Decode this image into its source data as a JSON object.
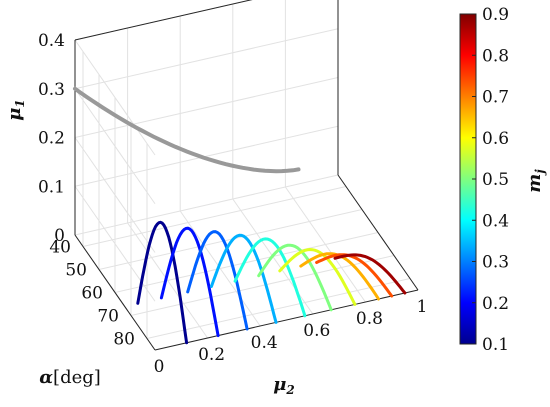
{
  "chart_data": {
    "type": "line",
    "projection": "3d",
    "axes": {
      "x": {
        "label_main": "μ",
        "label_sub": "2",
        "ticks": [
          "0",
          "0.2",
          "0.4",
          "0.6",
          "0.8",
          "1"
        ],
        "range": [
          0,
          1
        ]
      },
      "y": {
        "label_main": "α",
        "label_unit": "[deg]",
        "ticks": [
          "40",
          "50",
          "60",
          "70",
          "80"
        ],
        "range": [
          35,
          85
        ]
      },
      "z": {
        "label_main": "μ",
        "label_sub": "1",
        "ticks": [
          "0",
          "0.1",
          "0.2",
          "0.3",
          "0.4"
        ],
        "range": [
          0,
          0.4
        ]
      }
    },
    "grid": true,
    "colorbar": {
      "label_main": "m",
      "label_sub": "j",
      "ticks": [
        "0.1",
        "0.2",
        "0.3",
        "0.4",
        "0.5",
        "0.6",
        "0.7",
        "0.8",
        "0.9"
      ],
      "range": [
        0.1,
        0.9
      ],
      "colormap": "jet"
    },
    "envelope": {
      "color": "#999999",
      "x": [
        0.0,
        0.85
      ],
      "z": [
        0.3,
        0.03
      ]
    },
    "series": [
      {
        "m": 0.1,
        "x_start": 0.05,
        "x_end": 0.12,
        "z_peak": 0.205,
        "color": "#00008f"
      },
      {
        "m": 0.2,
        "x_start": 0.14,
        "x_end": 0.24,
        "z_peak": 0.18,
        "color": "#0010ff"
      },
      {
        "m": 0.3,
        "x_start": 0.24,
        "x_end": 0.35,
        "z_peak": 0.16,
        "color": "#0060ff"
      },
      {
        "m": 0.4,
        "x_start": 0.33,
        "x_end": 0.46,
        "z_peak": 0.14,
        "color": "#00b0ff"
      },
      {
        "m": 0.5,
        "x_start": 0.42,
        "x_end": 0.57,
        "z_peak": 0.12,
        "color": "#20ffdf"
      },
      {
        "m": 0.6,
        "x_start": 0.51,
        "x_end": 0.67,
        "z_peak": 0.095,
        "color": "#80ff80"
      },
      {
        "m": 0.7,
        "x_start": 0.59,
        "x_end": 0.76,
        "z_peak": 0.075,
        "color": "#dfff20"
      },
      {
        "m": 0.8,
        "x_start": 0.67,
        "x_end": 0.85,
        "z_peak": 0.055,
        "color": "#ffb000"
      },
      {
        "m": 0.85,
        "x_start": 0.73,
        "x_end": 0.9,
        "z_peak": 0.045,
        "color": "#ff5000"
      },
      {
        "m": 0.9,
        "x_start": 0.8,
        "x_end": 0.95,
        "z_peak": 0.035,
        "color": "#9f0000"
      }
    ]
  }
}
